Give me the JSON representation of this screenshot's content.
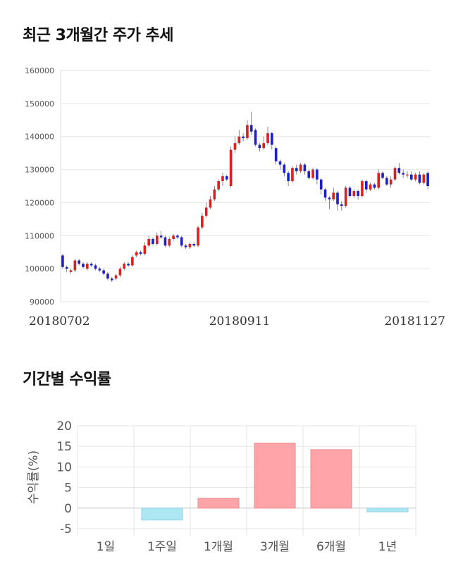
{
  "sections": {
    "price_title": "최근 3개월간 주가 추세",
    "returns_title": "기간별 수익률"
  },
  "colors": {
    "up": "#dd1f1f",
    "down": "#1e1eca",
    "positive_bar": "#ffa5a9",
    "negative_bar": "#aee7f4",
    "grid": "#e6e6e6"
  },
  "chart_data": [
    {
      "type": "candlestick",
      "title": "최근 3개월간 주가 추세",
      "ylim": [
        90000,
        160000
      ],
      "yticks": [
        90000,
        100000,
        110000,
        120000,
        130000,
        140000,
        150000,
        160000
      ],
      "date_labels": [
        "20180702",
        "20180911",
        "20181127"
      ],
      "candles": [
        [
          104000,
          100500,
          104500,
          100000
        ],
        [
          100500,
          100000,
          101000,
          99000
        ],
        [
          99000,
          99500,
          100000,
          98500
        ],
        [
          99500,
          102500,
          103000,
          99000
        ],
        [
          102500,
          101500,
          103000,
          101000
        ],
        [
          101500,
          100500,
          102000,
          100000
        ],
        [
          100000,
          101500,
          102000,
          99500
        ],
        [
          101500,
          101000,
          102000,
          100500
        ],
        [
          101000,
          100000,
          101500,
          99500
        ],
        [
          100000,
          99500,
          100500,
          99000
        ],
        [
          99500,
          98500,
          100000,
          98000
        ],
        [
          98500,
          97000,
          99000,
          96500
        ],
        [
          97000,
          96500,
          97500,
          96000
        ],
        [
          97000,
          98000,
          98500,
          96500
        ],
        [
          98000,
          100000,
          100500,
          97500
        ],
        [
          100000,
          101500,
          102000,
          99500
        ],
        [
          101500,
          101000,
          102000,
          100500
        ],
        [
          101000,
          103500,
          104000,
          100500
        ],
        [
          104000,
          105000,
          105500,
          103500
        ],
        [
          105000,
          104500,
          105500,
          104000
        ],
        [
          104500,
          107000,
          108000,
          104000
        ],
        [
          107000,
          109000,
          110000,
          106500
        ],
        [
          109000,
          107500,
          109500,
          107000
        ],
        [
          107500,
          110000,
          111000,
          107000
        ],
        [
          110000,
          109500,
          111500,
          109000
        ],
        [
          109500,
          107000,
          110000,
          106500
        ],
        [
          107000,
          109000,
          109500,
          106500
        ],
        [
          109000,
          110000,
          110500,
          108500
        ],
        [
          110000,
          109500,
          110500,
          109000
        ],
        [
          109500,
          107000,
          110000,
          106500
        ],
        [
          107000,
          106500,
          107500,
          106000
        ],
        [
          106500,
          107500,
          108000,
          106000
        ],
        [
          107500,
          107000,
          108000,
          106500
        ],
        [
          107000,
          112500,
          113000,
          106500
        ],
        [
          112500,
          116000,
          117000,
          112000
        ],
        [
          116000,
          118500,
          120000,
          115500
        ],
        [
          118500,
          121000,
          122000,
          118000
        ],
        [
          121000,
          124000,
          125000,
          120500
        ],
        [
          124000,
          126500,
          127000,
          123500
        ],
        [
          126500,
          128000,
          129000,
          125000
        ],
        [
          128000,
          127000,
          128500,
          126500
        ],
        [
          125000,
          136000,
          137000,
          124500
        ],
        [
          136000,
          138000,
          140000,
          135000
        ],
        [
          138000,
          140000,
          142000,
          137500
        ],
        [
          140000,
          139500,
          141000,
          138500
        ],
        [
          139500,
          143500,
          145000,
          139000
        ],
        [
          143500,
          141500,
          147500,
          140500
        ],
        [
          142000,
          137500,
          142500,
          137000
        ],
        [
          137500,
          136500,
          138000,
          135500
        ],
        [
          136500,
          138000,
          140000,
          136000
        ],
        [
          138000,
          141000,
          143000,
          137500
        ],
        [
          141000,
          137500,
          141500,
          136000
        ],
        [
          136500,
          132500,
          137000,
          131500
        ],
        [
          132500,
          131500,
          133000,
          130000
        ],
        [
          131500,
          129000,
          132000,
          128000
        ],
        [
          129000,
          126500,
          129500,
          125000
        ],
        [
          126500,
          130500,
          131000,
          126000
        ],
        [
          130500,
          129500,
          131500,
          128500
        ],
        [
          129500,
          131500,
          132000,
          129000
        ],
        [
          131500,
          129500,
          132000,
          128500
        ],
        [
          129500,
          127500,
          130000,
          127000
        ],
        [
          127500,
          130000,
          130500,
          127000
        ],
        [
          130000,
          127000,
          130500,
          125500
        ],
        [
          127000,
          124000,
          127500,
          122500
        ],
        [
          124000,
          121500,
          124500,
          120500
        ],
        [
          121500,
          121000,
          122000,
          118000
        ],
        [
          121000,
          123000,
          124500,
          120500
        ],
        [
          123000,
          119500,
          123500,
          117500
        ],
        [
          119500,
          119000,
          120500,
          117500
        ],
        [
          119000,
          124500,
          125000,
          118500
        ],
        [
          124500,
          122000,
          125000,
          121500
        ],
        [
          122000,
          123500,
          124000,
          121500
        ],
        [
          123500,
          122000,
          124000,
          121000
        ],
        [
          122000,
          126500,
          127000,
          121500
        ],
        [
          126500,
          124000,
          127000,
          123000
        ],
        [
          124000,
          125500,
          126000,
          123500
        ],
        [
          125500,
          124500,
          126000,
          124000
        ],
        [
          124500,
          129000,
          130000,
          124000
        ],
        [
          129000,
          127500,
          129500,
          127000
        ],
        [
          127500,
          125500,
          128000,
          125000
        ],
        [
          125500,
          127000,
          128000,
          124500
        ],
        [
          127000,
          130500,
          131000,
          126500
        ],
        [
          130500,
          129000,
          132000,
          128500
        ],
        [
          129000,
          128500,
          130000,
          127500
        ],
        [
          128500,
          128500,
          129500,
          127500
        ],
        [
          128500,
          127000,
          129500,
          126500
        ],
        [
          127000,
          128500,
          129000,
          126500
        ],
        [
          128500,
          126000,
          129500,
          125500
        ],
        [
          126000,
          128500,
          129000,
          125500
        ],
        [
          129000,
          125000,
          129500,
          124000
        ]
      ]
    },
    {
      "type": "bar",
      "title": "기간별 수익률",
      "ylabel": "수익률(%)",
      "categories": [
        "1일",
        "1주일",
        "1개월",
        "3개월",
        "6개월",
        "1년"
      ],
      "values": [
        0,
        -2.9,
        2.4,
        15.8,
        14.2,
        -0.9
      ],
      "ylim": [
        -5,
        20
      ],
      "yticks": [
        -5,
        0,
        5,
        10,
        15,
        20
      ]
    }
  ]
}
